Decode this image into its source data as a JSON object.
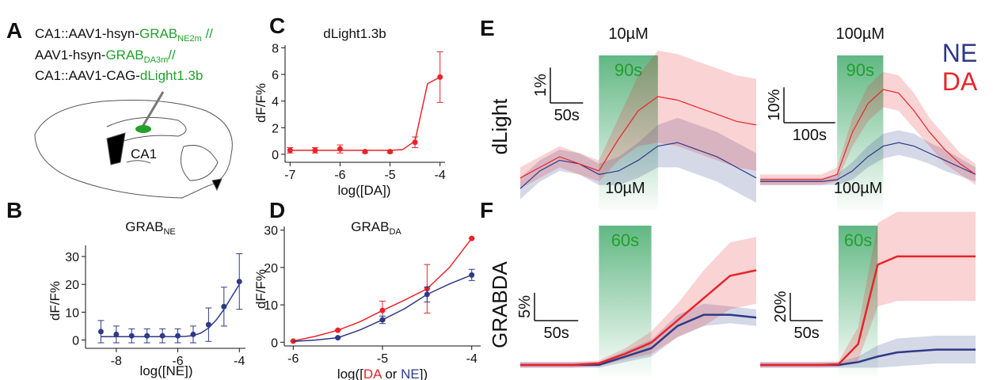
{
  "panels": [
    "A",
    "B",
    "C",
    "D",
    "E",
    "F"
  ],
  "panel_a": {
    "lines": [
      [
        "CA1::AAV1-hsyn-",
        "GRAB",
        "NE2m",
        " //"
      ],
      [
        "AAV1-hsyn-",
        "GRAB",
        "DA3m",
        "//"
      ],
      [
        "CA1::AAV1-CAG-",
        "dLight1.3b"
      ]
    ],
    "region": "CA1"
  },
  "row_labels": [
    "dLight",
    "GRABDA"
  ],
  "chart_data": [
    {
      "type": "scatter",
      "title": "GRAB",
      "title_sub": "NE",
      "xlabel": "log([NE])",
      "ylabel": "dF/F%",
      "xlim": [
        -9,
        -3.8
      ],
      "ylim": [
        -3,
        34
      ],
      "xticks": [
        -8,
        -6,
        -4
      ],
      "yticks": [
        0,
        10,
        20,
        30
      ],
      "series": [
        {
          "color": "#2e3a87",
          "x": [
            -8.5,
            -8,
            -7.5,
            -7,
            -6.5,
            -6,
            -5.5,
            -5,
            -4.5,
            -4
          ],
          "values": [
            3,
            2,
            1.5,
            1.5,
            1.5,
            1.5,
            2,
            5.5,
            12,
            21
          ],
          "errors": [
            4,
            3,
            2.5,
            2.5,
            2.5,
            2.5,
            3,
            6,
            7,
            10
          ],
          "fit_x": [
            -8.5,
            -8,
            -7.5,
            -7,
            -6.5,
            -6,
            -5.75,
            -5.5,
            -5.25,
            -5,
            -4.75,
            -4.5,
            -4.25,
            -4
          ],
          "fit_values": [
            1.2,
            1.2,
            1.2,
            1.2,
            1.2,
            1.2,
            1.3,
            1.6,
            2.5,
            4.3,
            7.2,
            11,
            15.5,
            20
          ]
        }
      ]
    },
    {
      "type": "scatter",
      "title": "dLight1.3b",
      "xlabel": "log([DA])",
      "ylabel": "dF/F%",
      "xlim": [
        -7.1,
        -3.9
      ],
      "ylim": [
        -0.6,
        8.2
      ],
      "xticks": [
        -7,
        -6,
        -5,
        -4
      ],
      "yticks": [
        0,
        2,
        4,
        6,
        8
      ],
      "series": [
        {
          "color": "#e8242a",
          "x": [
            -7,
            -6.5,
            -6,
            -5.5,
            -5,
            -4.5,
            -4
          ],
          "values": [
            0.3,
            0.3,
            0.4,
            0.2,
            0.2,
            0.9,
            5.8
          ],
          "errors": [
            0.2,
            0.2,
            0.3,
            0.1,
            0.1,
            0.4,
            1.9
          ],
          "fit_x": [
            -7,
            -6.5,
            -6,
            -5.5,
            -5,
            -4.75,
            -4.5,
            -4.25,
            -4
          ],
          "fit_values": [
            0.3,
            0.3,
            0.3,
            0.3,
            0.3,
            0.35,
            1,
            5.3,
            5.8
          ]
        }
      ]
    },
    {
      "type": "scatter",
      "title": "GRAB",
      "title_sub": "DA",
      "xlabel_parts": [
        "log([",
        "DA",
        " or ",
        "NE",
        "])"
      ],
      "ylabel": "dF/F%",
      "xlim": [
        -6.1,
        -3.9
      ],
      "ylim": [
        -1,
        31
      ],
      "xticks": [
        -6,
        -5,
        -4
      ],
      "yticks": [
        0,
        10,
        20,
        30
      ],
      "series": [
        {
          "color": "#e8242a",
          "x": [
            -6,
            -5.5,
            -5,
            -4.5,
            -4
          ],
          "values": [
            0.3,
            3.2,
            8.5,
            14.3,
            27.8
          ],
          "errors": [
            0,
            0,
            2.5,
            6.5,
            0
          ],
          "fit_x": [
            -6,
            -5.75,
            -5.5,
            -5.25,
            -5,
            -4.75,
            -4.5,
            -4.25,
            -4
          ],
          "fit_values": [
            0.3,
            1.6,
            3.2,
            5.5,
            8.5,
            11.3,
            14.3,
            20,
            27.8
          ]
        },
        {
          "color": "#2e3a87",
          "x": [
            -5.5,
            -5,
            -4.5,
            -4
          ],
          "values": [
            1.2,
            6,
            12.8,
            18
          ],
          "errors": [
            0,
            1,
            2,
            1.5
          ],
          "fit_x": [
            -6,
            -5.75,
            -5.5,
            -5.25,
            -5,
            -4.75,
            -4.5,
            -4.25,
            -4
          ],
          "fit_values": [
            0.2,
            0.6,
            1.2,
            3.3,
            6,
            9,
            12.8,
            15.6,
            18
          ]
        }
      ]
    },
    {
      "type": "trace",
      "xlim": [
        0,
        360
      ],
      "ylim": [
        -1.2,
        3.5
      ],
      "x": [
        0,
        30,
        60,
        90,
        120,
        150,
        180,
        210,
        240,
        270,
        300,
        330,
        360
      ],
      "stim": {
        "start": 120,
        "end": 210,
        "dose": "10µM",
        "duration": "90s"
      },
      "scalebar": {
        "y": {
          "value": 1,
          "label": "1%"
        },
        "x": {
          "value": 50,
          "label": "50s"
        }
      },
      "series": [
        {
          "color": "#2e3a87",
          "values": [
            -0.6,
            -0.1,
            0.2,
            0.1,
            -0.2,
            -0.1,
            0.2,
            0.6,
            0.7,
            0.5,
            0.3,
            0,
            -0.3
          ],
          "sd": [
            0.3,
            0.3,
            0.3,
            0.3,
            0.3,
            0.4,
            0.5,
            0.6,
            0.7,
            0.7,
            0.7,
            0.7,
            0.7
          ]
        },
        {
          "color": "#e8242a",
          "values": [
            -0.3,
            0,
            0.3,
            0.1,
            -0.1,
            0.8,
            1.6,
            2,
            1.9,
            1.7,
            1.5,
            1.3,
            1.2
          ],
          "sd": [
            0.3,
            0.3,
            0.3,
            0.3,
            0.3,
            0.6,
            1,
            1.3,
            1.3,
            1.3,
            1.3,
            1.3,
            1.3
          ]
        }
      ]
    },
    {
      "type": "trace",
      "xlim": [
        0,
        420
      ],
      "ylim": [
        -8,
        39
      ],
      "x": [
        0,
        30,
        60,
        90,
        120,
        150,
        180,
        210,
        240,
        270,
        300,
        330,
        360,
        390,
        420
      ],
      "stim": {
        "start": 150,
        "end": 240,
        "dose": "100µM",
        "duration": "90s"
      },
      "scalebar": {
        "y": {
          "value": 10,
          "label": "10%"
        },
        "x": {
          "value": 100,
          "label": "100s"
        }
      },
      "series": [
        {
          "name": "NE",
          "color": "#2e3a87",
          "values": [
            0,
            0,
            0,
            0,
            0,
            0.5,
            3,
            7,
            10,
            11,
            10,
            8,
            6,
            4,
            2
          ],
          "sd": [
            1,
            1,
            1,
            1,
            1,
            1.5,
            2.5,
            3,
            3.5,
            3.5,
            3.5,
            3,
            3,
            2.5,
            2
          ]
        },
        {
          "name": "DA",
          "color": "#e8242a",
          "values": [
            0.5,
            0.5,
            0.5,
            0.5,
            0.5,
            2,
            14,
            22,
            26,
            25,
            20,
            14,
            9,
            5,
            2
          ],
          "sd": [
            1.5,
            1.5,
            1.5,
            1.5,
            1.5,
            2,
            4,
            5,
            5,
            5,
            5,
            4,
            4,
            3,
            3
          ]
        }
      ]
    },
    {
      "type": "trace",
      "xlim": [
        0,
        270
      ],
      "ylim": [
        -2,
        30
      ],
      "x": [
        0,
        30,
        60,
        90,
        120,
        150,
        180,
        210,
        240,
        270
      ],
      "stim": {
        "start": 90,
        "end": 150,
        "dose": "10µM",
        "duration": "60s"
      },
      "scalebar": {
        "y": {
          "value": 5,
          "label": "5%"
        },
        "x": {
          "value": 50,
          "label": "50s"
        }
      },
      "series": [
        {
          "color": "#2e3a87",
          "values": [
            0,
            0,
            0,
            0,
            1.5,
            3,
            7,
            9,
            9,
            8.5
          ],
          "sd": [
            0.5,
            0.5,
            0.5,
            0.5,
            1,
            1.5,
            2,
            2,
            1.5,
            1.5
          ]
        },
        {
          "color": "#e8242a",
          "values": [
            0,
            0,
            0,
            0.3,
            2,
            4,
            8,
            12,
            16,
            17
          ],
          "sd": [
            0.5,
            0.5,
            0.5,
            0.5,
            1,
            2,
            3,
            5,
            6,
            6
          ]
        }
      ]
    },
    {
      "type": "trace",
      "xlim": [
        0,
        330
      ],
      "ylim": [
        -8,
        120
      ],
      "x": [
        0,
        30,
        60,
        90,
        120,
        150,
        180,
        210,
        240,
        270,
        300,
        330
      ],
      "stim": {
        "start": 120,
        "end": 180,
        "dose": "100µM",
        "duration": "60s"
      },
      "scalebar": {
        "y": {
          "value": 20,
          "label": "20%"
        },
        "x": {
          "value": 50,
          "label": "50s"
        }
      },
      "series": [
        {
          "color": "#2e3a87",
          "values": [
            0,
            0,
            0,
            0,
            0,
            2,
            6,
            9,
            10,
            11,
            11,
            11
          ],
          "sd": [
            2,
            2,
            2,
            2,
            2,
            4,
            8,
            10,
            10,
            10,
            10,
            10
          ]
        },
        {
          "color": "#e8242a",
          "values": [
            0,
            0,
            0,
            0,
            0.5,
            15,
            72,
            78,
            78,
            78,
            78,
            78
          ],
          "sd": [
            2,
            2,
            2,
            2,
            2,
            12,
            30,
            32,
            32,
            32,
            32,
            32
          ]
        }
      ]
    }
  ]
}
